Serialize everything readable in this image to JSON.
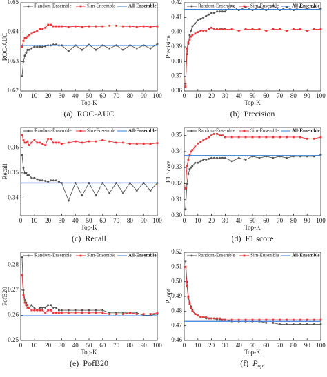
{
  "chart_data": [
    {
      "type": "line",
      "caption_label": "(a)",
      "caption": "ROC-AUC",
      "xlabel": "Top-K",
      "ylabel": "ROC-AUC",
      "x": [
        1,
        2,
        3,
        4,
        5,
        6,
        8,
        10,
        12,
        14,
        16,
        18,
        20,
        22,
        24,
        26,
        28,
        30,
        35,
        40,
        45,
        50,
        55,
        60,
        65,
        70,
        75,
        80,
        85,
        90,
        95,
        100
      ],
      "xlim": [
        0,
        100
      ],
      "xticks": [
        0,
        10,
        20,
        30,
        40,
        50,
        60,
        70,
        80,
        90,
        100
      ],
      "ylim": [
        0.62,
        0.65
      ],
      "yticks": [
        0.62,
        0.63,
        0.64,
        0.65
      ],
      "series": [
        {
          "name": "Random-Ensemble",
          "color": "#555555",
          "values": [
            0.625,
            0.63,
            0.632,
            0.633,
            0.634,
            0.634,
            0.6345,
            0.635,
            0.635,
            0.635,
            0.635,
            0.6352,
            0.6355,
            0.6355,
            0.6358,
            0.6358,
            0.6355,
            0.6355,
            0.6335,
            0.6355,
            0.634,
            0.6357,
            0.634,
            0.6355,
            0.6345,
            0.6355,
            0.634,
            0.6355,
            0.6345,
            0.6355,
            0.6345,
            0.636
          ]
        },
        {
          "name": "Sim-Ensemble",
          "color": "#e8353a",
          "values": [
            0.635,
            0.637,
            0.638,
            0.638,
            0.6385,
            0.639,
            0.6395,
            0.64,
            0.6405,
            0.641,
            0.6412,
            0.6415,
            0.6425,
            0.6425,
            0.642,
            0.642,
            0.642,
            0.642,
            0.6418,
            0.642,
            0.6418,
            0.642,
            0.642,
            0.642,
            0.6422,
            0.6422,
            0.642,
            0.642,
            0.6418,
            0.642,
            0.6418,
            0.642
          ]
        },
        {
          "name": "All-Ensemble",
          "color": "#3a7fd5",
          "x": [
            0,
            100
          ],
          "values": [
            0.6355,
            0.6355
          ]
        }
      ]
    },
    {
      "type": "line",
      "caption_label": "(b)",
      "caption": "Precision",
      "xlabel": "Top-K",
      "ylabel": "Precision",
      "x": [
        1,
        2,
        3,
        4,
        5,
        6,
        8,
        10,
        12,
        14,
        16,
        18,
        20,
        22,
        24,
        26,
        28,
        30,
        35,
        40,
        45,
        50,
        55,
        60,
        65,
        70,
        75,
        80,
        85,
        90,
        95,
        100
      ],
      "xlim": [
        0,
        100
      ],
      "xticks": [
        0,
        10,
        20,
        30,
        40,
        50,
        60,
        70,
        80,
        90,
        100
      ],
      "ylim": [
        0.36,
        0.42
      ],
      "yticks": [
        0.36,
        0.37,
        0.38,
        0.39,
        {
          "value": 0.4,
          "label": "0.40"
        },
        0.41,
        0.42
      ],
      "series": [
        {
          "name": "Random-Ensemble",
          "color": "#555555",
          "values": [
            0.365,
            0.385,
            0.392,
            0.398,
            0.401,
            0.404,
            0.406,
            0.408,
            0.409,
            0.41,
            0.411,
            0.412,
            0.413,
            0.413,
            0.414,
            0.414,
            0.414,
            0.414,
            0.418,
            0.415,
            0.417,
            0.415,
            0.417,
            0.415,
            0.418,
            0.415,
            0.417,
            0.415,
            0.417,
            0.416,
            0.417,
            0.416
          ]
        },
        {
          "name": "Sim-Ensemble",
          "color": "#e8353a",
          "values": [
            0.363,
            0.389,
            0.393,
            0.395,
            0.397,
            0.398,
            0.399,
            0.4,
            0.401,
            0.401,
            0.401,
            0.402,
            0.403,
            0.402,
            0.402,
            0.402,
            0.402,
            0.402,
            0.402,
            0.401,
            0.402,
            0.402,
            0.402,
            0.401,
            0.402,
            0.402,
            0.401,
            0.402,
            0.402,
            0.401,
            0.402,
            0.402
          ]
        },
        {
          "name": "All-Ensemble",
          "color": "#3a7fd5",
          "x": [
            0,
            100
          ],
          "values": [
            0.4155,
            0.4155
          ]
        }
      ]
    },
    {
      "type": "line",
      "caption_label": "(c)",
      "caption": "Recall",
      "xlabel": "Top-K",
      "ylabel": "Recall",
      "x": [
        1,
        2,
        3,
        4,
        5,
        6,
        8,
        10,
        12,
        14,
        16,
        18,
        20,
        22,
        24,
        26,
        28,
        30,
        35,
        40,
        45,
        50,
        55,
        60,
        65,
        70,
        75,
        80,
        85,
        90,
        95,
        100
      ],
      "xlim": [
        0,
        100
      ],
      "xticks": [
        0,
        10,
        20,
        30,
        40,
        50,
        60,
        70,
        80,
        90,
        100
      ],
      "ylim": [
        0.333,
        0.368
      ],
      "yticks": [
        0.34,
        0.35,
        0.36
      ],
      "series": [
        {
          "name": "Random-Ensemble",
          "color": "#555555",
          "values": [
            0.357,
            0.352,
            0.35,
            0.35,
            0.349,
            0.349,
            0.348,
            0.348,
            0.3475,
            0.347,
            0.347,
            0.3468,
            0.3465,
            0.347,
            0.347,
            0.347,
            0.3465,
            0.346,
            0.339,
            0.346,
            0.341,
            0.346,
            0.341,
            0.346,
            0.342,
            0.346,
            0.342,
            0.346,
            0.343,
            0.346,
            0.343,
            0.346
          ]
        },
        {
          "name": "Sim-Ensemble",
          "color": "#e8353a",
          "values": [
            0.365,
            0.363,
            0.362,
            0.362,
            0.3625,
            0.361,
            0.362,
            0.363,
            0.362,
            0.362,
            0.3615,
            0.361,
            0.3635,
            0.3635,
            0.362,
            0.362,
            0.362,
            0.3615,
            0.362,
            0.3625,
            0.362,
            0.3625,
            0.3625,
            0.363,
            0.3625,
            0.362,
            0.362,
            0.3615,
            0.3615,
            0.3615,
            0.3615,
            0.3618
          ]
        },
        {
          "name": "All-Ensemble",
          "color": "#3a7fd5",
          "x": [
            0,
            100
          ],
          "values": [
            0.346,
            0.346
          ]
        }
      ]
    },
    {
      "type": "line",
      "caption_label": "(d)",
      "caption": "F1 score",
      "xlabel": "Top-K",
      "ylabel": "F1 Score",
      "x": [
        1,
        2,
        3,
        4,
        5,
        6,
        8,
        10,
        12,
        14,
        16,
        18,
        20,
        22,
        24,
        26,
        28,
        30,
        35,
        40,
        45,
        50,
        55,
        60,
        65,
        70,
        75,
        80,
        85,
        90,
        95,
        100
      ],
      "xlim": [
        0,
        100
      ],
      "xticks": [
        0,
        10,
        20,
        30,
        40,
        50,
        60,
        70,
        80,
        90,
        100
      ],
      "ylim": [
        0.3,
        0.355
      ],
      "yticks": [
        {
          "value": 0.3,
          "label": "0.30"
        },
        0.31,
        0.32,
        0.33,
        0.34,
        0.35
      ],
      "series": [
        {
          "name": "Random-Ensemble",
          "color": "#555555",
          "values": [
            0.304,
            0.32,
            0.326,
            0.329,
            0.33,
            0.331,
            0.333,
            0.333,
            0.334,
            0.335,
            0.335,
            0.3355,
            0.336,
            0.336,
            0.336,
            0.336,
            0.336,
            0.336,
            0.334,
            0.336,
            0.335,
            0.337,
            0.336,
            0.337,
            0.336,
            0.337,
            0.336,
            0.337,
            0.337,
            0.337,
            0.337,
            0.338
          ]
        },
        {
          "name": "Sim-Ensemble",
          "color": "#e8353a",
          "values": [
            0.317,
            0.331,
            0.335,
            0.338,
            0.34,
            0.341,
            0.343,
            0.345,
            0.346,
            0.347,
            0.348,
            0.349,
            0.35,
            0.351,
            0.351,
            0.35,
            0.35,
            0.349,
            0.349,
            0.349,
            0.349,
            0.349,
            0.349,
            0.349,
            0.349,
            0.349,
            0.349,
            0.349,
            0.349,
            0.348,
            0.348,
            0.349
          ]
        },
        {
          "name": "All-Ensemble",
          "color": "#3a7fd5",
          "x": [
            0,
            100
          ],
          "values": [
            0.3375,
            0.3375
          ]
        }
      ]
    },
    {
      "type": "line",
      "caption_label": "(e)",
      "caption": "PofB20",
      "xlabel": "Top-K",
      "ylabel": "PofB20",
      "x": [
        1,
        2,
        3,
        4,
        5,
        6,
        8,
        10,
        12,
        14,
        16,
        18,
        20,
        22,
        24,
        26,
        28,
        30,
        35,
        40,
        45,
        50,
        55,
        60,
        65,
        70,
        75,
        80,
        85,
        90,
        95,
        100
      ],
      "xlim": [
        0,
        100
      ],
      "xticks": [
        0,
        10,
        20,
        30,
        40,
        50,
        60,
        70,
        80,
        90,
        100
      ],
      "ylim": [
        0.25,
        0.285
      ],
      "yticks": [
        0.25,
        0.26,
        0.27,
        0.28
      ],
      "series": [
        {
          "name": "Random-Ensemble",
          "color": "#555555",
          "values": [
            0.283,
            0.27,
            0.266,
            0.265,
            0.264,
            0.263,
            0.264,
            0.263,
            0.262,
            0.263,
            0.263,
            0.263,
            0.264,
            0.264,
            0.263,
            0.263,
            0.262,
            0.262,
            0.262,
            0.262,
            0.262,
            0.262,
            0.262,
            0.262,
            0.261,
            0.261,
            0.261,
            0.261,
            0.261,
            0.26,
            0.26,
            0.2605
          ]
        },
        {
          "name": "Sim-Ensemble",
          "color": "#e8353a",
          "values": [
            0.276,
            0.268,
            0.265,
            0.264,
            0.263,
            0.263,
            0.262,
            0.262,
            0.262,
            0.262,
            0.262,
            0.261,
            0.262,
            0.262,
            0.261,
            0.261,
            0.261,
            0.261,
            0.261,
            0.261,
            0.261,
            0.261,
            0.261,
            0.261,
            0.2605,
            0.2605,
            0.2605,
            0.261,
            0.2605,
            0.2605,
            0.2605,
            0.261
          ]
        },
        {
          "name": "All-Ensemble",
          "color": "#3a7fd5",
          "x": [
            0,
            100
          ],
          "values": [
            0.2598,
            0.2598
          ]
        }
      ]
    },
    {
      "type": "line",
      "caption_label": "(f)",
      "caption": "P",
      "caption_subscript": "opt",
      "xlabel": "Top-K",
      "ylabel": "P_opt",
      "x": [
        1,
        2,
        3,
        4,
        5,
        6,
        8,
        10,
        12,
        14,
        16,
        18,
        20,
        22,
        24,
        26,
        28,
        30,
        35,
        40,
        45,
        50,
        55,
        60,
        65,
        70,
        75,
        80,
        85,
        90,
        95,
        100
      ],
      "xlim": [
        0,
        100
      ],
      "xticks": [
        0,
        10,
        20,
        30,
        40,
        50,
        60,
        70,
        80,
        90,
        100
      ],
      "ylim": [
        0.46,
        0.52
      ],
      "yticks": [
        0.46,
        0.47,
        0.48,
        0.49,
        {
          "value": 0.5,
          "label": "0.50"
        },
        0.51,
        0.52
      ],
      "series": [
        {
          "name": "Random-Ensemble",
          "color": "#555555",
          "values": [
            0.514,
            0.5,
            0.49,
            0.486,
            0.483,
            0.481,
            0.478,
            0.477,
            0.476,
            0.476,
            0.475,
            0.475,
            0.475,
            0.475,
            0.474,
            0.474,
            0.474,
            0.474,
            0.473,
            0.473,
            0.473,
            0.473,
            0.473,
            0.472,
            0.472,
            0.471,
            0.471,
            0.471,
            0.471,
            0.471,
            0.471,
            0.471
          ]
        },
        {
          "name": "Sim-Ensemble",
          "color": "#e8353a",
          "values": [
            0.51,
            0.497,
            0.489,
            0.485,
            0.482,
            0.48,
            0.478,
            0.477,
            0.476,
            0.476,
            0.476,
            0.475,
            0.475,
            0.475,
            0.475,
            0.475,
            0.474,
            0.474,
            0.474,
            0.474,
            0.474,
            0.474,
            0.474,
            0.474,
            0.474,
            0.474,
            0.474,
            0.474,
            0.474,
            0.474,
            0.474,
            0.474
          ]
        },
        {
          "name": "All-Ensemble",
          "color": "#3a7fd5",
          "x": [
            0,
            100
          ],
          "values": [
            0.473,
            0.473
          ]
        }
      ]
    }
  ]
}
